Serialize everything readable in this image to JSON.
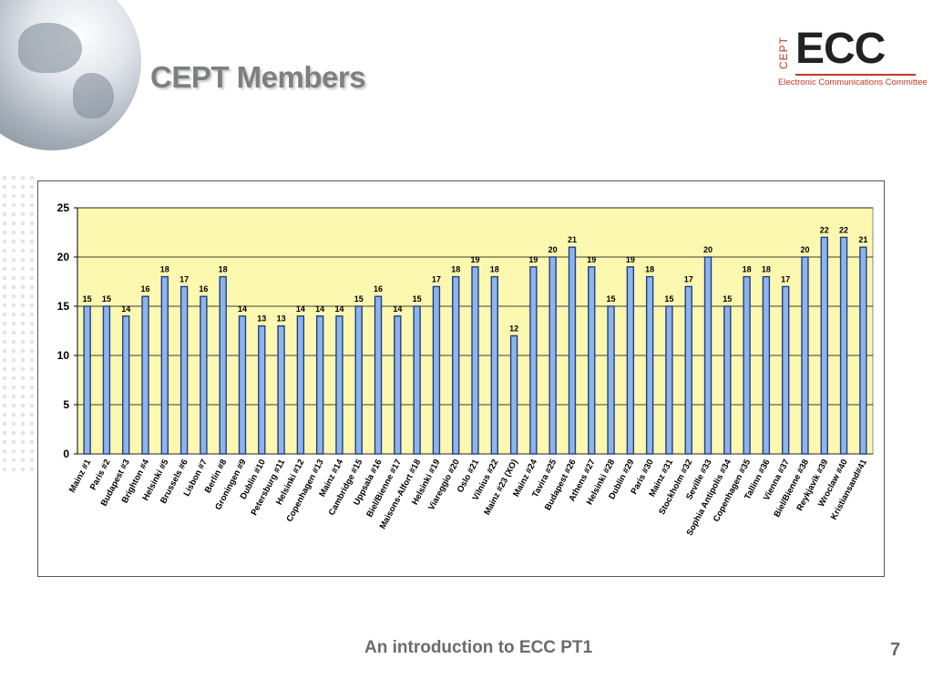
{
  "slide": {
    "title": "CEPT Members",
    "footer": "An introduction to ECC PT1",
    "page_number": "7"
  },
  "logo": {
    "cept": "CEPT",
    "ecc": "ECC",
    "subtitle": "Electronic Communications Committee"
  },
  "colors": {
    "plot_background": "#fdf8b0",
    "bar_fill": "#8eb4ea",
    "bar_stroke": "#1f3f86",
    "title": "#7e7f82",
    "logo_red": "#c0392b"
  },
  "chart_data": {
    "type": "bar",
    "title": "",
    "xlabel": "",
    "ylabel": "",
    "ylim": [
      0,
      25
    ],
    "yticks": [
      0,
      5,
      10,
      15,
      20,
      25
    ],
    "grid": true,
    "legend": "none",
    "categories": [
      "Mainz #1",
      "Paris #2",
      "Budapest #3",
      "Brighton #4",
      "Helsinki #5",
      "Brussels #6",
      "Lisbon #7",
      "Berlin #8",
      "Groningen #9",
      "Dublin #10",
      "Petersburg #11",
      "Helsinki #12",
      "Copenhagen #13",
      "Mainz #14",
      "Cambridge #15",
      "Uppsala #16",
      "Biel/Bienne #17",
      "Maisons-Alfort #18",
      "Helsinki #19",
      "Viareggio #20",
      "Oslo #21",
      "Vilnius #22",
      "Mainz #23 (XO)",
      "Mainz #24",
      "Tavira #25",
      "Budapest #26",
      "Athens #27",
      "Helsinki #28",
      "Dublin #29",
      "Paris #30",
      "Mainz #31",
      "Stockholm #32",
      "Seville #33",
      "Sophia Antipolis #34",
      "Copenhagen #35",
      "Tallinn #36",
      "Vienna #37",
      "Biel/Bienne #38",
      "Reykjavik #39",
      "Wroclaw #40",
      "Kristiansand#41"
    ],
    "values": [
      15,
      15,
      14,
      16,
      18,
      17,
      16,
      18,
      14,
      13,
      13,
      14,
      14,
      14,
      15,
      16,
      14,
      15,
      17,
      18,
      19,
      18,
      12,
      19,
      20,
      21,
      19,
      15,
      19,
      18,
      15,
      17,
      20,
      15,
      18,
      18,
      17,
      20,
      22,
      22,
      21
    ]
  }
}
